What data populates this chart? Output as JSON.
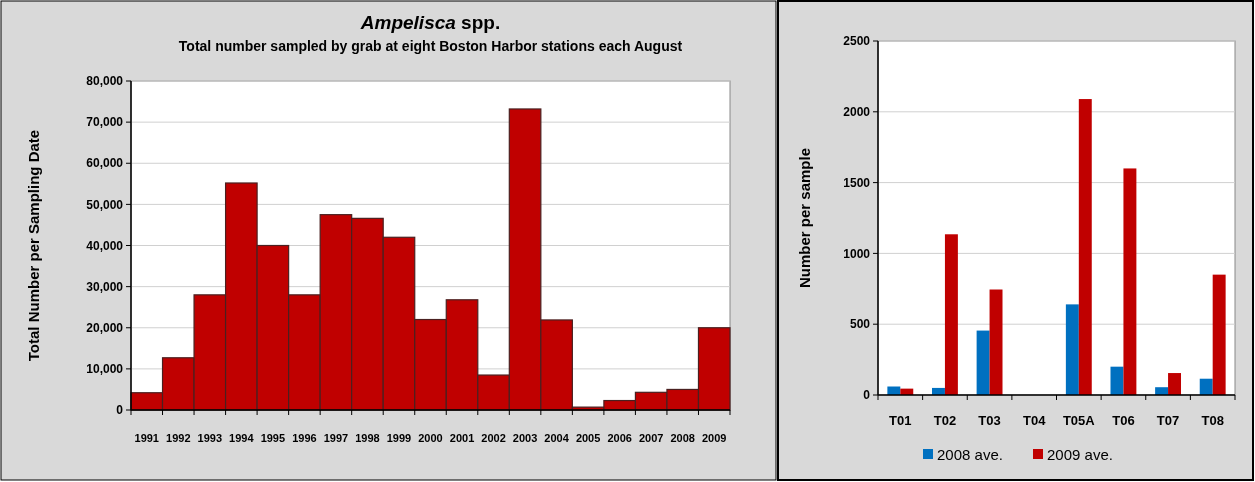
{
  "chart_data": [
    {
      "type": "bar",
      "title": "Ampelisca spp.",
      "subtitle": "Total number sampled by grab at eight Boston Harbor stations each August",
      "ylabel": "Total Number per Sampling Date",
      "categories": [
        "1991",
        "1992",
        "1993",
        "1994",
        "1995",
        "1996",
        "1997",
        "1998",
        "1999",
        "2000",
        "2001",
        "2002",
        "2003",
        "2004",
        "2005",
        "2006",
        "2007",
        "2008",
        "2009"
      ],
      "series": [
        {
          "color": "#c00000",
          "values": [
            4200,
            12700,
            28000,
            55200,
            40000,
            28000,
            47500,
            46600,
            42000,
            22000,
            26800,
            8500,
            73200,
            21900,
            700,
            2300,
            4300,
            5000,
            20000
          ]
        }
      ],
      "ylim": [
        0,
        80000
      ],
      "yticks": [
        {
          "value": 0,
          "label": "0"
        },
        {
          "value": 10000,
          "label": "10,000"
        },
        {
          "value": 20000,
          "label": "20,000"
        },
        {
          "value": 30000,
          "label": "30,000"
        },
        {
          "value": 40000,
          "label": "40,000"
        },
        {
          "value": 50000,
          "label": "50,000"
        },
        {
          "value": 60000,
          "label": "60,000"
        },
        {
          "value": 70000,
          "label": "70,000"
        },
        {
          "value": 80000,
          "label": "80,000"
        }
      ],
      "grid": "y",
      "legend": false
    },
    {
      "type": "bar",
      "ylabel": "Number per sample",
      "categories": [
        "T01",
        "T02",
        "T03",
        "T04",
        "T05A",
        "T06",
        "T07",
        "T08"
      ],
      "series": [
        {
          "name": "2008 ave.",
          "color": "#0070c0",
          "values": [
            60,
            50,
            455,
            0,
            640,
            200,
            55,
            115
          ]
        },
        {
          "name": "2009 ave.",
          "color": "#c00000",
          "values": [
            45,
            1135,
            745,
            0,
            2090,
            1600,
            155,
            850
          ]
        }
      ],
      "ylim": [
        0,
        2500
      ],
      "yticks": [
        0,
        500,
        1000,
        1500,
        2000,
        2500
      ],
      "grid": "y",
      "legend": "bottom"
    }
  ]
}
